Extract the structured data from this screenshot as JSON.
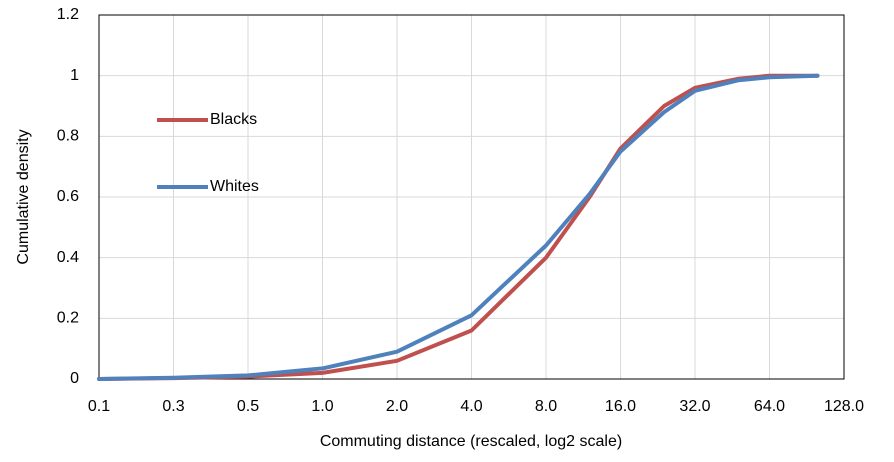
{
  "chart_data": {
    "type": "line",
    "x_label": "Commuting distance (rescaled, log2 scale)",
    "y_label": "Cumulative density",
    "x": [
      0.125,
      0.25,
      0.5,
      1,
      2,
      4,
      8,
      12,
      16,
      24,
      32,
      48,
      64,
      100
    ],
    "series": [
      {
        "name": "Blacks",
        "color": "#c0504d",
        "values": [
          0,
          0.003,
          0.008,
          0.02,
          0.06,
          0.16,
          0.4,
          0.6,
          0.76,
          0.9,
          0.96,
          0.99,
          1.0,
          1.0
        ]
      },
      {
        "name": "Whites",
        "color": "#4f81bd",
        "values": [
          0,
          0.004,
          0.012,
          0.035,
          0.09,
          0.21,
          0.44,
          0.61,
          0.75,
          0.88,
          0.95,
          0.985,
          0.995,
          1.0
        ]
      }
    ],
    "xlim": [
      0.125,
      128
    ],
    "xticks": [
      {
        "value": 0.125,
        "label": "0.1"
      },
      {
        "value": 0.25,
        "label": "0.3"
      },
      {
        "value": 0.5,
        "label": "0.5"
      },
      {
        "value": 1,
        "label": "1.0"
      },
      {
        "value": 2,
        "label": "2.0"
      },
      {
        "value": 4,
        "label": "4.0"
      },
      {
        "value": 8,
        "label": "8.0"
      },
      {
        "value": 16,
        "label": "16.0"
      },
      {
        "value": 32,
        "label": "32.0"
      },
      {
        "value": 64,
        "label": "64.0"
      },
      {
        "value": 128,
        "label": "128.0"
      }
    ],
    "x_log_base": 2,
    "ylim": [
      0,
      1.2
    ],
    "yticks": [
      0,
      0.2,
      0.4,
      0.6,
      0.8,
      1,
      1.2
    ],
    "grid": true,
    "legend_position": "left"
  }
}
